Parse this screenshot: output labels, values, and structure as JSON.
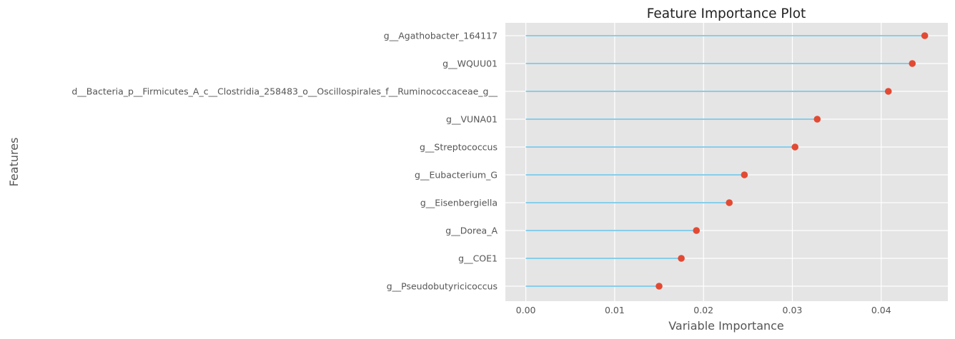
{
  "chart_data": {
    "type": "lollipop",
    "title": "Feature Importance Plot",
    "xlabel": "Variable Importance",
    "ylabel": "Features",
    "xlim": [
      -0.0023,
      0.0475
    ],
    "xticks": [
      0.0,
      0.01,
      0.02,
      0.03,
      0.04
    ],
    "xtick_labels": [
      "0.00",
      "0.01",
      "0.02",
      "0.03",
      "0.04"
    ],
    "grid": true,
    "categories": [
      "g__Agathobacter_164117",
      "g__WQUU01",
      "d__Bacteria_p__Firmicutes_A_c__Clostridia_258483_o__Oscillospirales_f__Ruminococcaceae_g__",
      "g__VUNA01",
      "g__Streptococcus",
      "g__Eubacterium_G",
      "g__Eisenbergiella",
      "g__Dorea_A",
      "g__COE1",
      "g__Pseudobutyricicoccus"
    ],
    "values": [
      0.0449,
      0.0435,
      0.0408,
      0.0328,
      0.0303,
      0.0246,
      0.0229,
      0.0192,
      0.0175,
      0.015
    ],
    "colors": {
      "stem": "#87ceeb",
      "marker": "#e24a33",
      "panel": "#e5e5e5",
      "grid": "#ffffff"
    }
  }
}
